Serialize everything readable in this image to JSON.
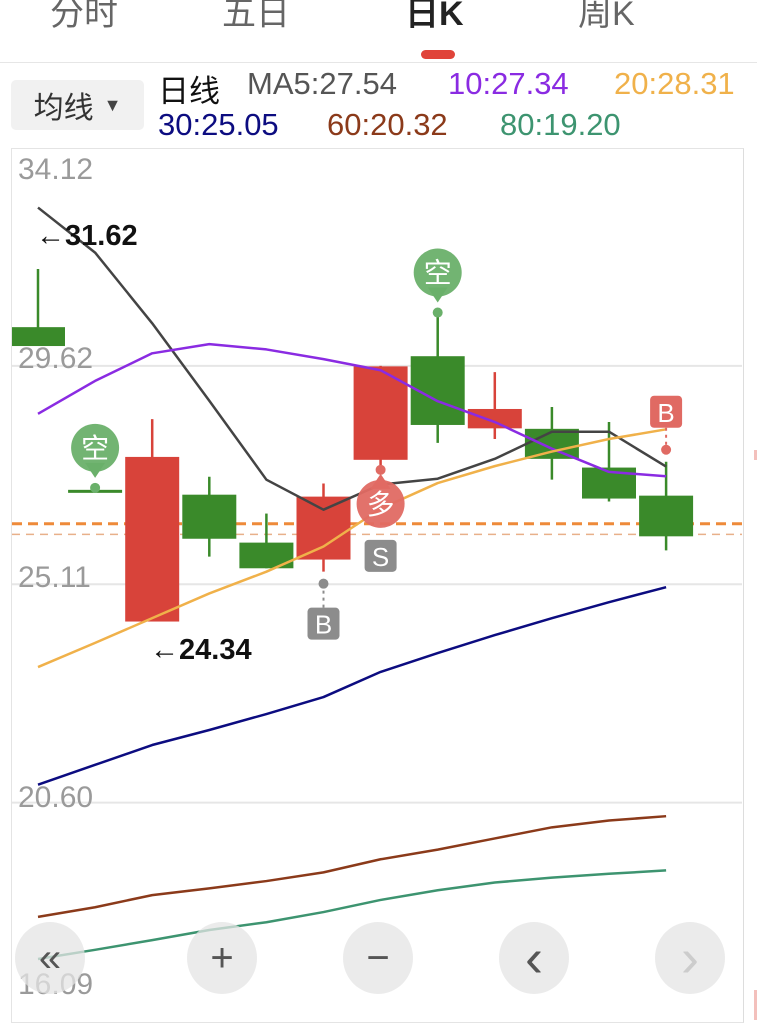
{
  "tabs": [
    {
      "label": "分时"
    },
    {
      "label": "五日"
    },
    {
      "label": "日K",
      "active": true
    },
    {
      "label": "周K"
    }
  ],
  "ma_selector": {
    "label": "均线",
    "caret": "▼"
  },
  "legend": {
    "period": "日线",
    "items": [
      {
        "text": "MA5:27.54",
        "color": "#555555"
      },
      {
        "text": "10:27.34",
        "color": "#8a2be2"
      },
      {
        "text": "20:28.31",
        "color": "#f0b14a"
      },
      {
        "text": "30:25.05",
        "color": "#0c0c80"
      },
      {
        "text": "60:20.32",
        "color": "#8b3a1a"
      },
      {
        "text": "80:19.20",
        "color": "#3d9470"
      }
    ]
  },
  "colors": {
    "up": "#d8433a",
    "down": "#3a8a2a",
    "grid": "#e6e6e6",
    "current_price_line": "#ee8a3a"
  },
  "chart_data": {
    "type": "candlestick",
    "ylim": [
      16.09,
      34.12
    ],
    "y_ticks": [
      "34.12",
      "29.62",
      "25.11",
      "20.60",
      "16.09"
    ],
    "grid": true,
    "candles": [
      {
        "open": 30.42,
        "close": 30.03,
        "high": 31.62,
        "low": 30.03
      },
      {
        "open": 27.06,
        "close": 27.06,
        "high": 27.06,
        "low": 27.06
      },
      {
        "open": 24.34,
        "close": 27.74,
        "high": 28.52,
        "low": 24.34
      },
      {
        "open": 26.96,
        "close": 26.05,
        "high": 27.33,
        "low": 25.68
      },
      {
        "open": 25.97,
        "close": 25.44,
        "high": 26.57,
        "low": 25.44
      },
      {
        "open": 25.62,
        "close": 26.92,
        "high": 27.19,
        "low": 25.37
      },
      {
        "open": 27.68,
        "close": 29.61,
        "high": 29.62,
        "low": 27.5
      },
      {
        "open": 29.82,
        "close": 28.4,
        "high": 30.68,
        "low": 28.03
      },
      {
        "open": 28.33,
        "close": 28.73,
        "high": 29.49,
        "low": 28.11
      },
      {
        "open": 28.32,
        "close": 27.7,
        "high": 28.77,
        "low": 27.27
      },
      {
        "open": 27.52,
        "close": 26.88,
        "high": 28.46,
        "low": 26.82
      },
      {
        "open": 26.94,
        "close": 26.1,
        "high": 27.64,
        "low": 25.81
      }
    ],
    "moving_averages": [
      {
        "name": "MA5",
        "color": "#444444",
        "values": [
          32.89,
          31.96,
          30.5,
          28.9,
          27.27,
          26.65,
          27.17,
          27.29,
          27.7,
          28.26,
          28.26,
          27.54
        ]
      },
      {
        "name": "10",
        "color": "#8a2be2",
        "values": [
          28.63,
          29.31,
          29.88,
          30.07,
          29.96,
          29.76,
          29.53,
          28.89,
          28.46,
          27.91,
          27.43,
          27.34
        ]
      },
      {
        "name": "20",
        "color": "#f0b14a",
        "values": [
          23.4,
          23.9,
          24.41,
          24.92,
          25.37,
          25.89,
          26.67,
          27.2,
          27.55,
          27.85,
          28.11,
          28.31
        ]
      },
      {
        "name": "30",
        "color": "#0c0c80",
        "values": [
          20.97,
          21.38,
          21.79,
          22.1,
          22.43,
          22.78,
          23.3,
          23.69,
          24.06,
          24.41,
          24.74,
          25.05
        ]
      },
      {
        "name": "60",
        "color": "#8b3a1a",
        "values": [
          18.24,
          18.44,
          18.69,
          18.83,
          18.98,
          19.16,
          19.43,
          19.63,
          19.86,
          20.09,
          20.23,
          20.32
        ]
      },
      {
        "name": "80",
        "color": "#3d9470",
        "values": [
          17.37,
          17.56,
          17.76,
          17.97,
          18.13,
          18.34,
          18.59,
          18.79,
          18.95,
          19.05,
          19.13,
          19.2
        ]
      }
    ],
    "price_lines": [
      {
        "value": 26.36,
        "style": "thick-dashed"
      },
      {
        "value": 26.14,
        "style": "thin-dashed"
      }
    ],
    "extreme_labels": [
      {
        "text": "←31.62",
        "value": 31.62,
        "candle": 0
      },
      {
        "text": "←24.34",
        "value": 24.34,
        "candle": 2
      }
    ],
    "signals": [
      {
        "candle": 1,
        "text": "空",
        "kind": "bubble",
        "color": "#6ab06a",
        "position": "above"
      },
      {
        "candle": 7,
        "text": "空",
        "kind": "bubble",
        "color": "#6ab06a",
        "position": "above"
      },
      {
        "candle": 6,
        "text": "多",
        "kind": "bubble",
        "color": "#e06a63",
        "position": "below"
      },
      {
        "candle": 6,
        "text": "S",
        "kind": "tag",
        "color": "#8c8c8c",
        "position": "below"
      },
      {
        "candle": 5,
        "text": "B",
        "kind": "tag",
        "color": "#8c8c8c",
        "position": "below"
      },
      {
        "candle": 11,
        "text": "B",
        "kind": "tag",
        "color": "#e06a63",
        "position": "above"
      }
    ]
  },
  "nav_buttons": [
    {
      "name": "jump-start-button",
      "glyph": "«"
    },
    {
      "name": "zoom-in-button",
      "glyph": "+"
    },
    {
      "name": "zoom-out-button",
      "glyph": "−"
    },
    {
      "name": "scroll-left-button",
      "glyph": "‹"
    },
    {
      "name": "scroll-right-button",
      "glyph": "›",
      "disabled": true
    }
  ]
}
